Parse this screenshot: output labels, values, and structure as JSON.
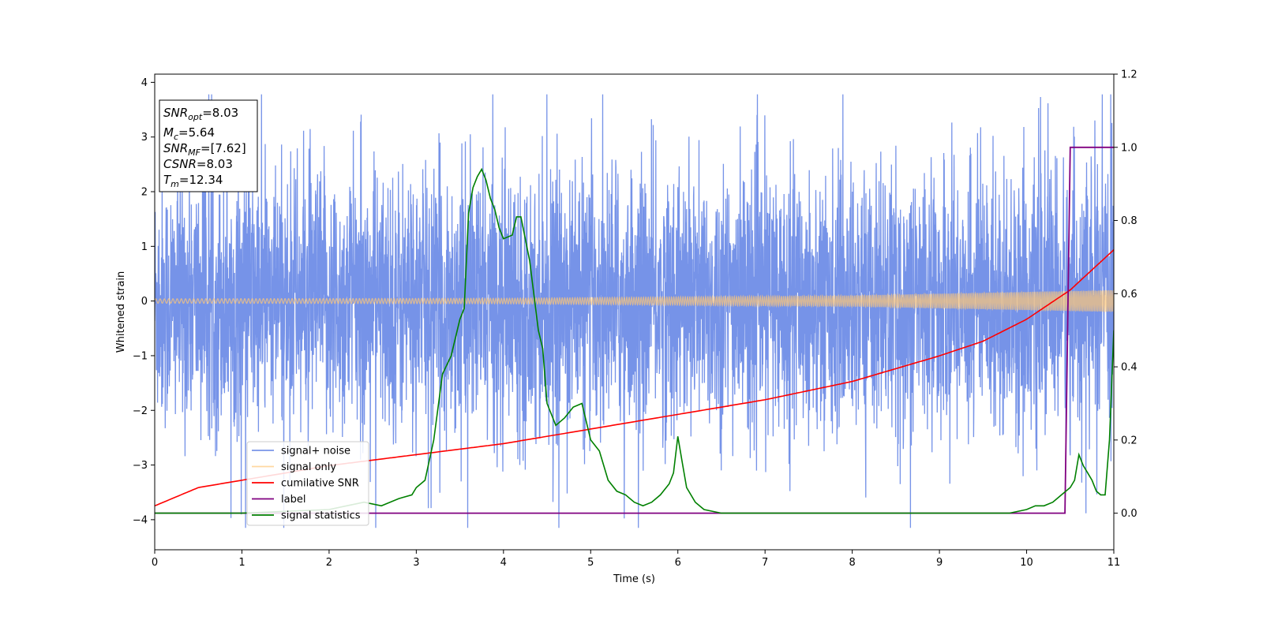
{
  "chart_data": {
    "type": "line",
    "xlabel": "Time (s)",
    "ylabel": "Whitened strain",
    "xlim": [
      0,
      11
    ],
    "ylim": [
      -4.55,
      4.15
    ],
    "y2lim": [
      -0.1,
      1.2
    ],
    "x_ticks": [
      "0",
      "1",
      "2",
      "3",
      "4",
      "5",
      "6",
      "7",
      "8",
      "9",
      "10",
      "11"
    ],
    "y_ticks": [
      "−4",
      "−3",
      "−2",
      "−1",
      "0",
      "1",
      "2",
      "3",
      "4"
    ],
    "y2_ticks": [
      "0.0",
      "0.2",
      "0.4",
      "0.6",
      "0.8",
      "1.0",
      "1.2"
    ],
    "grid": false,
    "legend_position": "lower-left",
    "legend": [
      "signal+ noise",
      "signal only",
      "cumilative SNR",
      "label",
      "signal statistics"
    ],
    "colors": {
      "signal_noise": "#6a8ae6",
      "signal_only": "#ffc878",
      "cumulative_snr": "#ff0000",
      "label": "#800080",
      "signal_statistics": "#008000"
    },
    "series": [
      {
        "name": "signal+ noise",
        "axis": "left",
        "description": "noise-like strain, roughly ±1.3 typical with spikes to ~±3.8",
        "amplitude_typical": 1.3,
        "peaks": {
          "max": 3.78,
          "min": -4.15
        }
      },
      {
        "name": "signal only",
        "axis": "left",
        "description": "chirp oscillation, amplitude grows from ~0.04 at t=0 to ~0.2 at t=11",
        "amplitude": {
          "x": [
            0,
            4,
            8,
            11
          ],
          "y": [
            0.04,
            0.05,
            0.1,
            0.2
          ]
        }
      },
      {
        "name": "cumilative SNR",
        "axis": "right",
        "x": [
          0,
          0.5,
          1,
          2,
          3,
          4,
          5,
          6,
          7,
          8,
          9,
          9.5,
          10,
          10.5,
          11
        ],
        "y": [
          0.02,
          0.07,
          0.09,
          0.13,
          0.16,
          0.19,
          0.23,
          0.27,
          0.31,
          0.36,
          0.43,
          0.47,
          0.53,
          0.61,
          0.72
        ]
      },
      {
        "name": "label",
        "axis": "right",
        "x": [
          0,
          10.44,
          10.5,
          11
        ],
        "y": [
          0,
          0,
          1,
          1
        ]
      },
      {
        "name": "signal statistics",
        "axis": "right",
        "x": [
          0,
          1,
          2,
          2.2,
          2.4,
          2.6,
          2.8,
          2.95,
          3.0,
          3.1,
          3.2,
          3.3,
          3.4,
          3.5,
          3.55,
          3.6,
          3.65,
          3.7,
          3.75,
          3.8,
          3.85,
          3.9,
          3.95,
          4.0,
          4.1,
          4.15,
          4.2,
          4.3,
          4.4,
          4.45,
          4.5,
          4.6,
          4.7,
          4.8,
          4.9,
          5.0,
          5.1,
          5.2,
          5.3,
          5.4,
          5.5,
          5.6,
          5.7,
          5.8,
          5.9,
          5.95,
          6.0,
          6.05,
          6.1,
          6.2,
          6.3,
          6.5,
          7,
          8,
          9,
          9.8,
          10.0,
          10.1,
          10.2,
          10.3,
          10.4,
          10.5,
          10.55,
          10.6,
          10.65,
          10.7,
          10.75,
          10.8,
          10.85,
          10.9,
          10.95,
          11.0
        ],
        "y": [
          0.0,
          0.0,
          0.01,
          0.02,
          0.03,
          0.02,
          0.04,
          0.05,
          0.07,
          0.09,
          0.2,
          0.38,
          0.43,
          0.53,
          0.56,
          0.82,
          0.89,
          0.92,
          0.94,
          0.91,
          0.86,
          0.83,
          0.78,
          0.75,
          0.76,
          0.81,
          0.81,
          0.69,
          0.5,
          0.45,
          0.3,
          0.24,
          0.26,
          0.29,
          0.3,
          0.2,
          0.17,
          0.09,
          0.06,
          0.05,
          0.03,
          0.02,
          0.03,
          0.05,
          0.08,
          0.11,
          0.21,
          0.14,
          0.07,
          0.03,
          0.01,
          0.0,
          0.0,
          0.0,
          0.0,
          0.0,
          0.01,
          0.02,
          0.02,
          0.03,
          0.05,
          0.07,
          0.09,
          0.16,
          0.13,
          0.11,
          0.09,
          0.06,
          0.05,
          0.05,
          0.2,
          0.5
        ]
      }
    ],
    "annotation_box": {
      "lines": [
        {
          "main": "SNR",
          "sub": "opt",
          "value": "=8.03"
        },
        {
          "main": "M",
          "sub": "c",
          "value": "=5.64"
        },
        {
          "main": "SNR",
          "sub": "MF",
          "value": "=[7.62]"
        },
        {
          "main": "CSNR",
          "sub": "",
          "value": "=8.03"
        },
        {
          "main": "T",
          "sub": "m",
          "value": "=12.34"
        }
      ]
    }
  }
}
